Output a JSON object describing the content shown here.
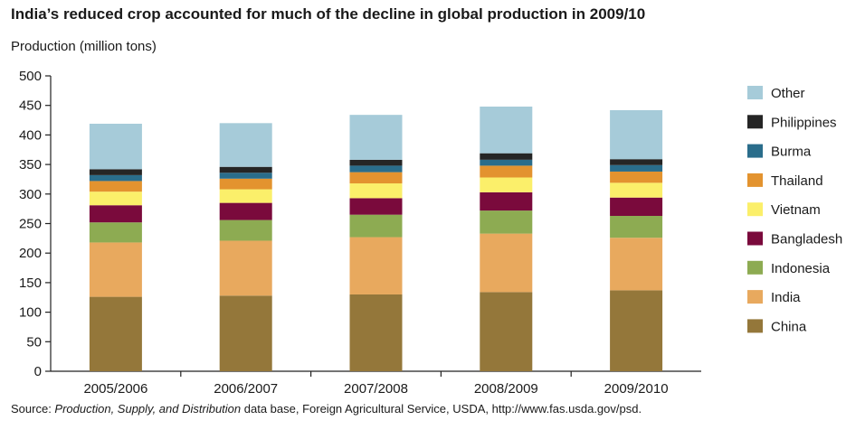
{
  "chart_data": {
    "type": "bar",
    "stacked": true,
    "title": "India’s reduced crop accounted for much of the decline in global production in 2009/10",
    "ylabel": "Production (million tons)",
    "xlabel": "",
    "ylim": [
      0,
      500
    ],
    "yticks": [
      0,
      50,
      100,
      150,
      200,
      250,
      300,
      350,
      400,
      450,
      500
    ],
    "grid": false,
    "legend_position": "right",
    "categories": [
      "2005/2006",
      "2006/2007",
      "2007/2008",
      "2008/2009",
      "2009/2010"
    ],
    "series": [
      {
        "name": "China",
        "color": "#94773a",
        "values": [
          126,
          128,
          130,
          134,
          137
        ]
      },
      {
        "name": "India",
        "color": "#e8a95e",
        "values": [
          92,
          93,
          97,
          99,
          89
        ]
      },
      {
        "name": "Indonesia",
        "color": "#8dab52",
        "values": [
          34,
          35,
          38,
          39,
          37
        ]
      },
      {
        "name": "Bangladesh",
        "color": "#7a0a3c",
        "values": [
          29,
          29,
          28,
          31,
          31
        ]
      },
      {
        "name": "Vietnam",
        "color": "#fbef6a",
        "values": [
          23,
          23,
          25,
          25,
          25
        ]
      },
      {
        "name": "Thailand",
        "color": "#e3932f",
        "values": [
          18,
          18,
          19,
          20,
          19
        ]
      },
      {
        "name": "Burma",
        "color": "#2a6d8b",
        "values": [
          10,
          10,
          11,
          10,
          11
        ]
      },
      {
        "name": "Philippines",
        "color": "#252525",
        "values": [
          10,
          10,
          10,
          11,
          10
        ]
      },
      {
        "name": "Other",
        "color": "#a6cbd9",
        "values": [
          77,
          74,
          76,
          79,
          83
        ]
      }
    ],
    "source": {
      "prefix": "Source: ",
      "italic": "Production, Supply, and Distribution",
      "suffix": " data base, Foreign Agricultural Service, USDA, http://www.fas.usda.gov/psd."
    }
  }
}
